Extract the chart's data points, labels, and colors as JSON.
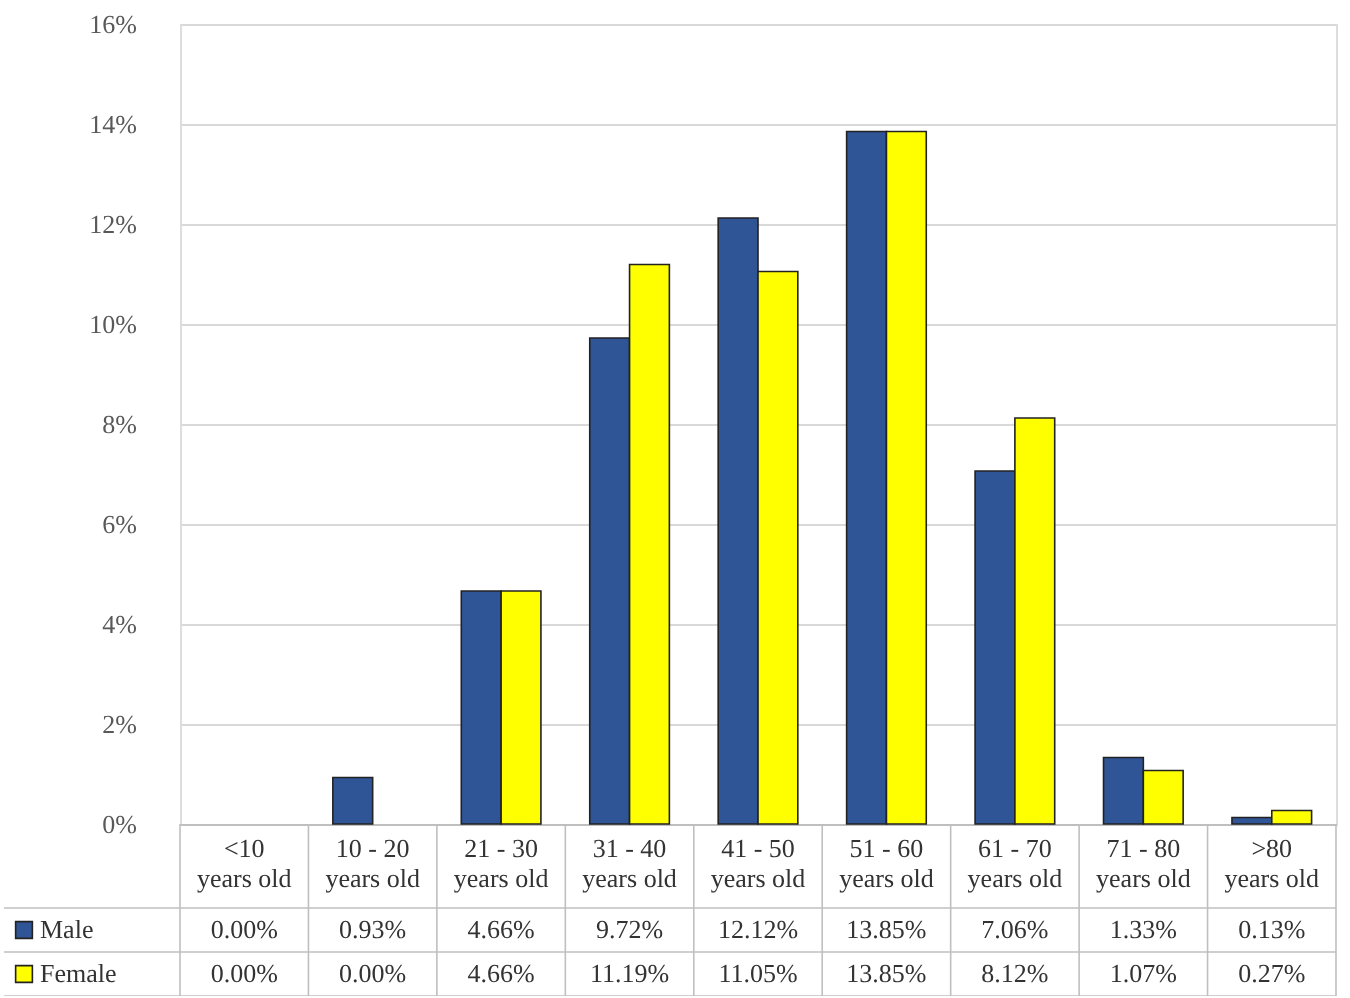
{
  "chart_data": {
    "type": "bar",
    "categories": [
      "<10\nyears old",
      "10 - 20\nyears old",
      "21 - 30\nyears old",
      "31 - 40\nyears old",
      "41 - 50\nyears old",
      "51 - 60\nyears old",
      "61 - 70\nyears old",
      "71 - 80\nyears old",
      ">80\nyears old"
    ],
    "series": [
      {
        "name": "Male",
        "color": "#2f5597",
        "values": [
          0.0,
          0.93,
          4.66,
          9.72,
          12.12,
          13.85,
          7.06,
          1.33,
          0.13
        ],
        "value_labels": [
          "0.00%",
          "0.93%",
          "4.66%",
          "9.72%",
          "12.12%",
          "13.85%",
          "7.06%",
          "1.33%",
          "0.13%"
        ]
      },
      {
        "name": "Female",
        "color": "#ffff00",
        "values": [
          0.0,
          0.0,
          4.66,
          11.19,
          11.05,
          13.85,
          8.12,
          1.07,
          0.27
        ],
        "value_labels": [
          "0.00%",
          "0.00%",
          "4.66%",
          "11.19%",
          "11.05%",
          "13.85%",
          "8.12%",
          "1.07%",
          "0.27%"
        ]
      }
    ],
    "ylim": [
      0,
      16
    ],
    "yticks": [
      {
        "value": 0,
        "label": "0%"
      },
      {
        "value": 2,
        "label": "2%"
      },
      {
        "value": 4,
        "label": "4%"
      },
      {
        "value": 6,
        "label": "6%"
      },
      {
        "value": 8,
        "label": "8%"
      },
      {
        "value": 10,
        "label": "10%"
      },
      {
        "value": 12,
        "label": "12%"
      },
      {
        "value": 14,
        "label": "14%"
      },
      {
        "value": 16,
        "label": "16%"
      }
    ],
    "grid": "y",
    "legend": "bottom"
  }
}
